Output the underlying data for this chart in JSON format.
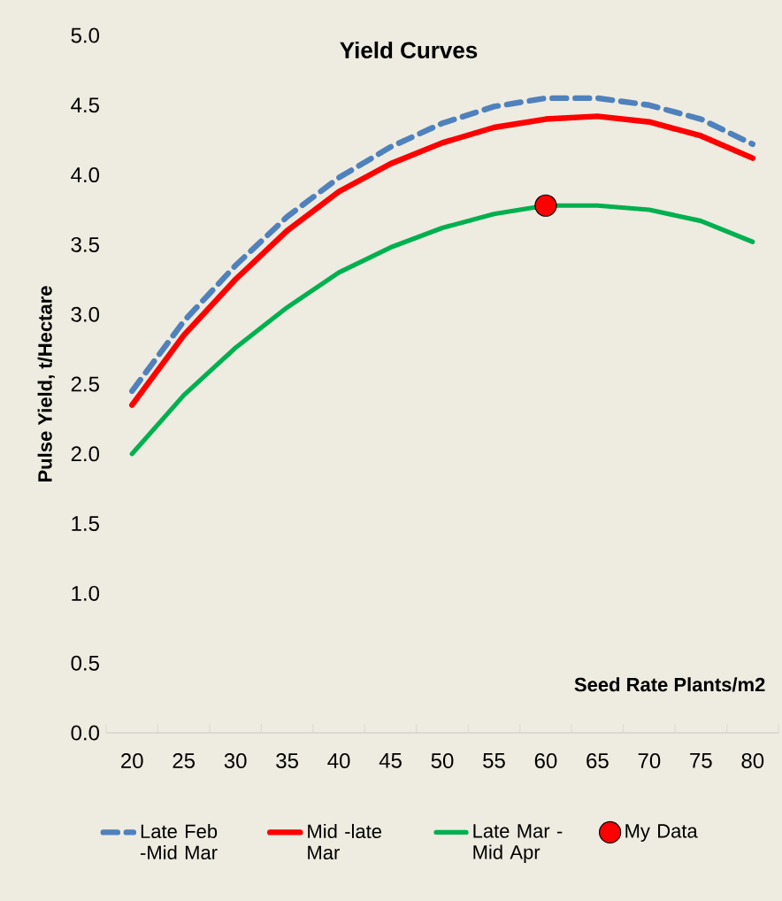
{
  "chart_data": {
    "type": "line",
    "title": "Yield Curves",
    "xlabel": "Seed Rate Plants/m2",
    "ylabel": "Pulse Yield,  t/Hectare",
    "categories": [
      "20",
      "25",
      "30",
      "35",
      "40",
      "45",
      "50",
      "55",
      "60",
      "65",
      "70",
      "75",
      "80"
    ],
    "ylim": [
      0,
      5
    ],
    "yticks": [
      {
        "value": 0,
        "label": "0.0"
      },
      {
        "value": 0.5,
        "label": "0.5"
      },
      {
        "value": 1,
        "label": "1.0"
      },
      {
        "value": 1.5,
        "label": "1.5"
      },
      {
        "value": 2,
        "label": "2.0"
      },
      {
        "value": 2.5,
        "label": "2.5"
      },
      {
        "value": 3,
        "label": "3.0"
      },
      {
        "value": 3.5,
        "label": "3.5"
      },
      {
        "value": 4,
        "label": "4.0"
      },
      {
        "value": 4.5,
        "label": "4.5"
      },
      {
        "value": 5,
        "label": "5.0"
      }
    ],
    "legend": "bottom",
    "marker": "none",
    "series": [
      {
        "name": "Late Feb -Mid Mar",
        "color": "#4f81bd",
        "line_style": "dashed",
        "values": [
          2.45,
          2.95,
          3.35,
          3.7,
          3.98,
          4.2,
          4.37,
          4.49,
          4.55,
          4.55,
          4.5,
          4.4,
          4.22
        ]
      },
      {
        "name": "Mid -late Mar",
        "color": "#ff0000",
        "line_style": "solid",
        "values": [
          2.35,
          2.85,
          3.25,
          3.6,
          3.88,
          4.08,
          4.23,
          4.34,
          4.4,
          4.42,
          4.38,
          4.28,
          4.12
        ]
      },
      {
        "name": "Late Mar - Mid Apr",
        "color": "#00b050",
        "line_style": "solid",
        "values": [
          2.0,
          2.42,
          2.76,
          3.05,
          3.3,
          3.48,
          3.62,
          3.72,
          3.78,
          3.78,
          3.75,
          3.67,
          3.52
        ]
      },
      {
        "name": "My Data",
        "type": "scatter",
        "marker": "circle",
        "color": "#ff0000",
        "values": [
          null,
          null,
          null,
          null,
          null,
          null,
          null,
          null,
          3.78,
          null,
          null,
          null,
          null
        ]
      }
    ]
  }
}
